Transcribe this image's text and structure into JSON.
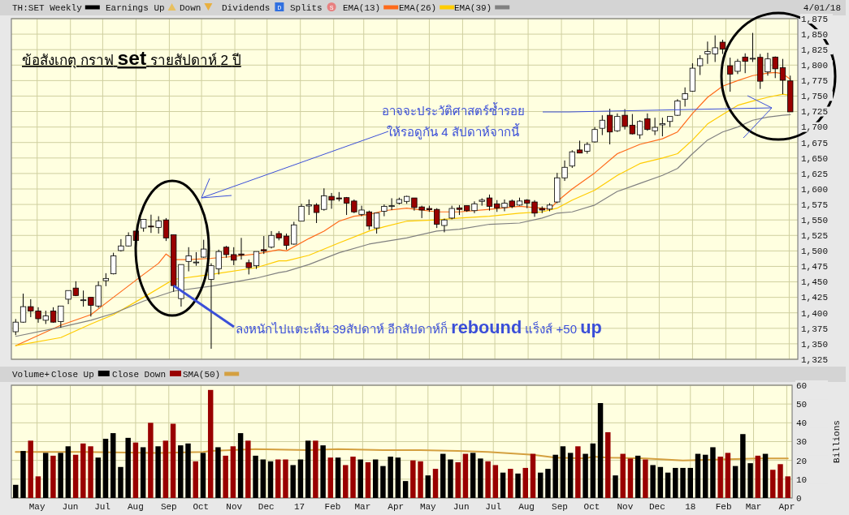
{
  "chart_data": [
    {
      "type": "candlestick",
      "title": "ข้อสังเกตุ กราฟ set รายสัปดาห์ 2 ปี",
      "legend": "top left",
      "grid": true,
      "tick_labels": "y",
      "annotations": [
        "Earnings Up",
        "Down",
        "Dividends",
        "D",
        "Splits",
        "S",
        "4/01/18",
        "อาจจะประวัติศาสตร์ซ้ำรอย",
        "ให้รอดูกัน 4 สัปดาห์จากนี้",
        {
          "text": "ลงหนักไปแตะเส้น 39สัปดาห์ อีกสัปดาห์ก็ rebound แร็งส์ +50 up",
          "x": "2016-09-05",
          "y": 1444
        }
      ],
      "x": [
        "2016-04-11",
        "2016-04-18",
        "2016-04-25",
        "2016-05-02",
        "2016-05-09",
        "2016-05-16",
        "2016-05-23",
        "2016-05-30",
        "2016-06-06",
        "2016-06-13",
        "2016-06-20",
        "2016-06-27",
        "2016-07-04",
        "2016-07-11",
        "2016-07-18",
        "2016-07-25",
        "2016-08-01",
        "2016-08-08",
        "2016-08-15",
        "2016-08-22",
        "2016-08-29",
        "2016-09-05",
        "2016-09-12",
        "2016-09-19",
        "2016-09-26",
        "2016-10-03",
        "2016-10-10",
        "2016-10-17",
        "2016-10-24",
        "2016-10-31",
        "2016-11-07",
        "2016-11-14",
        "2016-11-21",
        "2016-11-28",
        "2016-12-05",
        "2016-12-12",
        "2016-12-19",
        "2016-12-26",
        "2017-01-02",
        "2017-01-09",
        "2017-01-16",
        "2017-01-23",
        "2017-01-30",
        "2017-02-06",
        "2017-02-13",
        "2017-02-20",
        "2017-02-27",
        "2017-03-06",
        "2017-03-13",
        "2017-03-20",
        "2017-03-27",
        "2017-04-03",
        "2017-04-10",
        "2017-04-17",
        "2017-04-24",
        "2017-05-01",
        "2017-05-08",
        "2017-05-15",
        "2017-05-22",
        "2017-05-29",
        "2017-06-05",
        "2017-06-12",
        "2017-06-19",
        "2017-06-26",
        "2017-07-03",
        "2017-07-10",
        "2017-07-17",
        "2017-07-24",
        "2017-07-31",
        "2017-08-07",
        "2017-08-14",
        "2017-08-21",
        "2017-08-28",
        "2017-09-04",
        "2017-09-11",
        "2017-09-18",
        "2017-09-25",
        "2017-10-02",
        "2017-10-09",
        "2017-10-16",
        "2017-10-23",
        "2017-10-30",
        "2017-11-06",
        "2017-11-13",
        "2017-11-20",
        "2017-11-27",
        "2017-12-04",
        "2017-12-11",
        "2017-12-18",
        "2017-12-25",
        "2018-01-01",
        "2018-01-08",
        "2018-01-15",
        "2018-01-22",
        "2018-01-29",
        "2018-02-05",
        "2018-02-12",
        "2018-02-19",
        "2018-02-26",
        "2018-03-05",
        "2018-03-12",
        "2018-03-19",
        "2018-03-26",
        "2018-04-02"
      ],
      "xlim": [
        "2016-04-07",
        "2018-04-09"
      ],
      "xticks": [
        {
          "value": "2016-05-01",
          "label": "May"
        },
        {
          "value": "2016-06-01",
          "label": "Jun"
        },
        {
          "value": "2016-07-01",
          "label": "Jul"
        },
        {
          "value": "2016-08-01",
          "label": "Aug"
        },
        {
          "value": "2016-09-01",
          "label": "Sep"
        },
        {
          "value": "2016-10-01",
          "label": "Oct"
        },
        {
          "value": "2016-11-01",
          "label": "Nov"
        },
        {
          "value": "2016-12-01",
          "label": "Dec"
        },
        {
          "value": "2017-01-01",
          "label": "17"
        },
        {
          "value": "2017-02-01",
          "label": "Feb"
        },
        {
          "value": "2017-03-01",
          "label": "Mar"
        },
        {
          "value": "2017-04-01",
          "label": "Apr"
        },
        {
          "value": "2017-05-01",
          "label": "May"
        },
        {
          "value": "2017-06-01",
          "label": "Jun"
        },
        {
          "value": "2017-07-01",
          "label": "Jul"
        },
        {
          "value": "2017-08-01",
          "label": "Aug"
        },
        {
          "value": "2017-09-01",
          "label": "Sep"
        },
        {
          "value": "2017-10-01",
          "label": "Oct"
        },
        {
          "value": "2017-11-01",
          "label": "Nov"
        },
        {
          "value": "2017-12-01",
          "label": "Dec"
        },
        {
          "value": "2018-01-01",
          "label": "18"
        },
        {
          "value": "2018-02-01",
          "label": "Feb"
        },
        {
          "value": "2018-03-01",
          "label": "Mar"
        },
        {
          "value": "2018-04-01",
          "label": "Apr"
        }
      ],
      "ylim": [
        1325,
        1875
      ],
      "yticks": [
        {
          "value": 1325,
          "label": "1,325"
        },
        {
          "value": 1350,
          "label": "1,350"
        },
        {
          "value": 1375,
          "label": "1,375"
        },
        {
          "value": 1400,
          "label": "1,400"
        },
        {
          "value": 1425,
          "label": "1,425"
        },
        {
          "value": 1450,
          "label": "1,450"
        },
        {
          "value": 1475,
          "label": "1,475"
        },
        {
          "value": 1500,
          "label": "1,500"
        },
        {
          "value": 1525,
          "label": "1,525"
        },
        {
          "value": 1550,
          "label": "1,550"
        },
        {
          "value": 1575,
          "label": "1,575"
        },
        {
          "value": 1600,
          "label": "1,600"
        },
        {
          "value": 1625,
          "label": "1,625"
        },
        {
          "value": 1650,
          "label": "1,650"
        },
        {
          "value": 1675,
          "label": "1,675"
        },
        {
          "value": 1700,
          "label": "1,700"
        },
        {
          "value": 1725,
          "label": "1,725"
        },
        {
          "value": 1750,
          "label": "1,750"
        },
        {
          "value": 1775,
          "label": "1,775"
        },
        {
          "value": 1800,
          "label": "1,800"
        },
        {
          "value": 1825,
          "label": "1,825"
        },
        {
          "value": 1850,
          "label": "1,850"
        },
        {
          "value": 1875,
          "label": "1,875"
        }
      ],
      "series": [
        {
          "name": "TH:SET Weekly",
          "type": "candlestick",
          "color": "#000000",
          "colors": [
            "#ffffff",
            "#ffffff",
            "#990000",
            "#990000",
            "#ffffff",
            "#990000",
            "#ffffff",
            "#ffffff",
            "#990000",
            "#ffffff",
            "#990000",
            "#ffffff",
            "#ffffff",
            "#ffffff",
            "#ffffff",
            "#ffffff",
            "#990000",
            "#ffffff",
            "#990000",
            "#ffffff",
            "#990000",
            "#990000",
            "#ffffff",
            "#ffffff",
            "#ffffff",
            "#ffffff",
            "#ffffff",
            "#ffffff",
            "#990000",
            "#990000",
            "#990000",
            "#990000",
            "#ffffff",
            "#990000",
            "#ffffff",
            "#990000",
            "#990000",
            "#ffffff",
            "#ffffff",
            "#ffffff",
            "#990000",
            "#ffffff",
            "#990000",
            "#990000",
            "#990000",
            "#990000",
            "#ffffff",
            "#990000",
            "#ffffff",
            "#ffffff",
            "#ffffff",
            "#ffffff",
            "#ffffff",
            "#990000",
            "#990000",
            "#990000",
            "#990000",
            "#ffffff",
            "#ffffff",
            "#990000",
            "#990000",
            "#ffffff",
            "#ffffff",
            "#990000",
            "#990000",
            "#ffffff",
            "#990000",
            "#ffffff",
            "#990000",
            "#990000",
            "#990000",
            "#ffffff",
            "#ffffff",
            "#ffffff",
            "#ffffff",
            "#990000",
            "#ffffff",
            "#ffffff",
            "#ffffff",
            "#990000",
            "#ffffff",
            "#990000",
            "#990000",
            "#ffffff",
            "#990000",
            "#ffffff",
            "#ffffff",
            "#ffffff",
            "#ffffff",
            "#ffffff",
            "#ffffff",
            "#ffffff",
            "#ffffff",
            "#ffffff",
            "#990000",
            "#990000",
            "#ffffff",
            "#990000",
            "#ffffff",
            "#990000",
            "#ffffff",
            "#990000",
            "#990000",
            "#990000"
          ],
          "ohlc": [
            [
              1369.5,
              1390,
              1364,
              1385
            ],
            [
              1385,
              1431,
              1384,
              1410
            ],
            [
              1410,
              1422,
              1393,
              1403
            ],
            [
              1403,
              1409,
              1384,
              1390.5
            ],
            [
              1388,
              1403.5,
              1382,
              1395
            ],
            [
              1403,
              1409,
              1384,
              1385
            ],
            [
              1386,
              1411,
              1376,
              1411
            ],
            [
              1422,
              1436,
              1414,
              1436
            ],
            [
              1440,
              1451,
              1427,
              1428
            ],
            [
              1420,
              1436,
              1410,
              1421
            ],
            [
              1425,
              1425,
              1394,
              1412
            ],
            [
              1411,
              1451,
              1408,
              1444
            ],
            [
              1452,
              1464,
              1443,
              1455.5
            ],
            [
              1463,
              1497,
              1462,
              1492
            ],
            [
              1500.5,
              1519,
              1499,
              1508
            ],
            [
              1508,
              1530,
              1507,
              1524.5
            ],
            [
              1532,
              1532,
              1493,
              1517
            ],
            [
              1537,
              1551,
              1531,
              1551
            ],
            [
              1540,
              1558.5,
              1529,
              1539
            ],
            [
              1538,
              1556,
              1528,
              1548.5
            ],
            [
              1550,
              1553,
              1516,
              1521
            ],
            [
              1526,
              1526,
              1434,
              1444
            ],
            [
              1423,
              1478,
              1410,
              1478
            ],
            [
              1483,
              1506,
              1467,
              1492
            ],
            [
              1481.5,
              1498,
              1476,
              1482
            ],
            [
              1490,
              1518,
              1489,
              1503
            ],
            [
              1454,
              1480,
              1342,
              1476
            ],
            [
              1471,
              1502,
              1462,
              1499
            ],
            [
              1506,
              1508,
              1489,
              1494
            ],
            [
              1494,
              1506,
              1477,
              1485
            ],
            [
              1495,
              1521,
              1486,
              1493.5
            ],
            [
              1481,
              1486,
              1462,
              1473
            ],
            [
              1476,
              1499,
              1471,
              1499
            ],
            [
              1502,
              1524,
              1495,
              1500
            ],
            [
              1506,
              1532,
              1504,
              1525
            ],
            [
              1528,
              1532,
              1517,
              1521
            ],
            [
              1524,
              1528,
              1502,
              1509
            ],
            [
              1511,
              1547,
              1510,
              1542
            ],
            [
              1548,
              1576,
              1548,
              1572
            ],
            [
              1572.5,
              1583,
              1558,
              1574.5
            ],
            [
              1574,
              1577,
              1545,
              1562
            ],
            [
              1567,
              1601,
              1565,
              1589
            ],
            [
              1588,
              1593.5,
              1568,
              1582
            ],
            [
              1585.5,
              1595,
              1580,
              1584
            ],
            [
              1586,
              1587,
              1558,
              1577
            ],
            [
              1580.5,
              1583,
              1561,
              1563
            ],
            [
              1559,
              1573,
              1556,
              1566
            ],
            [
              1563,
              1565,
              1534,
              1540
            ],
            [
              1537,
              1561,
              1528,
              1561
            ],
            [
              1564,
              1575,
              1556,
              1572
            ],
            [
              1572.5,
              1585,
              1566,
              1573
            ],
            [
              1577,
              1586,
              1575,
              1583
            ],
            [
              1580,
              1589,
              1576,
              1588
            ],
            [
              1585.5,
              1585.5,
              1565,
              1570
            ],
            [
              1571,
              1573,
              1553,
              1566
            ],
            [
              1568.5,
              1573,
              1563,
              1566.5
            ],
            [
              1567,
              1569,
              1537,
              1543
            ],
            [
              1541,
              1552,
              1530,
              1550
            ],
            [
              1553,
              1573,
              1551,
              1568.5
            ],
            [
              1569.5,
              1574,
              1558,
              1567
            ],
            [
              1573,
              1573,
              1563,
              1565
            ],
            [
              1565,
              1580,
              1561,
              1576
            ],
            [
              1580,
              1585,
              1573,
              1582
            ],
            [
              1585.5,
              1591,
              1565,
              1572
            ],
            [
              1576,
              1582,
              1563,
              1569.5
            ],
            [
              1570,
              1583,
              1564,
              1577
            ],
            [
              1580.5,
              1583,
              1569,
              1572
            ],
            [
              1574,
              1586,
              1573,
              1580.5
            ],
            [
              1582,
              1583.5,
              1569,
              1577
            ],
            [
              1579,
              1582,
              1555,
              1561
            ],
            [
              1568.5,
              1572,
              1561,
              1566
            ],
            [
              1567.5,
              1577,
              1564,
              1574
            ],
            [
              1579,
              1626,
              1577,
              1618
            ],
            [
              1618,
              1646,
              1613,
              1635
            ],
            [
              1637,
              1662.5,
              1634,
              1660
            ],
            [
              1663,
              1678,
              1657.5,
              1658
            ],
            [
              1661,
              1675.5,
              1657,
              1672
            ],
            [
              1676,
              1700,
              1675,
              1696
            ],
            [
              1698,
              1719,
              1687,
              1711
            ],
            [
              1719,
              1729.5,
              1672,
              1692
            ],
            [
              1694,
              1722,
              1692,
              1717
            ],
            [
              1719,
              1729,
              1696,
              1701
            ],
            [
              1703,
              1721,
              1688,
              1689
            ],
            [
              1687.5,
              1711,
              1681,
              1709
            ],
            [
              1713.5,
              1722,
              1694,
              1696
            ],
            [
              1694,
              1715,
              1687,
              1699.5
            ],
            [
              1703.5,
              1715,
              1685,
              1705.5
            ],
            [
              1709,
              1717,
              1700,
              1717
            ],
            [
              1719,
              1745,
              1718,
              1742
            ],
            [
              1745,
              1764,
              1733,
              1754
            ],
            [
              1758,
              1803,
              1757,
              1795
            ],
            [
              1799,
              1816,
              1784,
              1810.5
            ],
            [
              1818,
              1838,
              1802,
              1822
            ],
            [
              1818,
              1848,
              1805,
              1828
            ],
            [
              1837,
              1841,
              1818,
              1826
            ],
            [
              1799,
              1812,
              1757,
              1785.5
            ],
            [
              1790,
              1810,
              1785.5,
              1806
            ],
            [
              1813,
              1819,
              1787,
              1806
            ],
            [
              1810.5,
              1852,
              1805,
              1811
            ],
            [
              1812.5,
              1818,
              1761.5,
              1774
            ],
            [
              1789,
              1820,
              1783,
              1810
            ],
            [
              1813,
              1814,
              1779,
              1794
            ],
            [
              1796,
              1810,
              1753,
              1775.5
            ],
            [
              1774.5,
              1783,
              1724.5,
              1724.5
            ]
          ]
        },
        {
          "name": "EMA(13)",
          "type": "line",
          "color": "#ff6a1a",
          "x": [
            "2016-04-11",
            "2016-05-23",
            "2016-06-20",
            "2016-07-11",
            "2016-08-08",
            "2016-08-22",
            "2016-08-29",
            "2016-09-05",
            "2016-09-19",
            "2016-10-10",
            "2016-10-31",
            "2016-11-21",
            "2016-12-12",
            "2016-12-19",
            "2017-01-09",
            "2017-01-23",
            "2017-02-06",
            "2017-02-20",
            "2017-03-06",
            "2017-03-20",
            "2017-04-10",
            "2017-05-08",
            "2017-05-29",
            "2017-06-26",
            "2017-07-24",
            "2017-08-14",
            "2017-08-21",
            "2017-08-28",
            "2017-09-11",
            "2017-10-02",
            "2017-10-23",
            "2017-11-13",
            "2017-12-04",
            "2017-12-18",
            "2018-01-01",
            "2018-01-15",
            "2018-01-29",
            "2018-02-12",
            "2018-02-26",
            "2018-03-12",
            "2018-03-19",
            "2018-03-26",
            "2018-04-02"
          ],
          "values": [
            1347,
            1380,
            1397,
            1425,
            1462,
            1480,
            1495,
            1486,
            1486,
            1488,
            1491,
            1495,
            1502,
            1500,
            1520,
            1532,
            1548,
            1556,
            1559,
            1565,
            1569,
            1563,
            1563,
            1567,
            1572,
            1569,
            1567,
            1580,
            1600,
            1626,
            1657,
            1672,
            1681,
            1692,
            1722,
            1748,
            1766,
            1775,
            1783,
            1787,
            1788,
            1786,
            1777
          ]
        },
        {
          "name": "EMA(26)",
          "type": "line",
          "color": "#ffcc00",
          "x": [
            "2016-04-11",
            "2016-05-23",
            "2016-06-20",
            "2016-07-11",
            "2016-08-08",
            "2016-09-05",
            "2016-10-10",
            "2016-11-21",
            "2016-12-12",
            "2016-12-19",
            "2017-01-09",
            "2017-02-06",
            "2017-03-06",
            "2017-03-20",
            "2017-04-10",
            "2017-05-08",
            "2017-05-29",
            "2017-06-26",
            "2017-07-24",
            "2017-08-14",
            "2017-08-28",
            "2017-09-11",
            "2017-10-02",
            "2017-10-23",
            "2017-11-13",
            "2017-12-04",
            "2017-12-18",
            "2018-01-01",
            "2018-01-15",
            "2018-01-29",
            "2018-02-12",
            "2018-02-26",
            "2018-03-12",
            "2018-03-26",
            "2018-04-02"
          ],
          "values": [
            1347,
            1360,
            1382,
            1397,
            1425,
            1454,
            1462,
            1473,
            1484,
            1484,
            1493,
            1513,
            1532,
            1539,
            1548,
            1550,
            1553,
            1556,
            1561,
            1563,
            1569,
            1582,
            1598,
            1622,
            1641,
            1650,
            1657,
            1679,
            1705,
            1720,
            1735,
            1742,
            1748,
            1753,
            1751
          ]
        },
        {
          "name": "EMA(39)",
          "type": "line",
          "color": "#808080",
          "x": [
            "2016-04-11",
            "2016-05-23",
            "2016-06-20",
            "2016-07-11",
            "2016-08-08",
            "2016-09-05",
            "2016-10-10",
            "2016-11-21",
            "2016-12-12",
            "2016-12-19",
            "2017-01-09",
            "2017-02-06",
            "2017-03-06",
            "2017-03-20",
            "2017-04-10",
            "2017-05-08",
            "2017-05-29",
            "2017-06-26",
            "2017-07-24",
            "2017-08-14",
            "2017-08-28",
            "2017-09-11",
            "2017-10-02",
            "2017-10-23",
            "2017-11-13",
            "2017-12-04",
            "2017-12-18",
            "2018-01-01",
            "2018-01-15",
            "2018-01-29",
            "2018-02-12",
            "2018-02-26",
            "2018-03-12",
            "2018-03-26",
            "2018-04-02"
          ],
          "values": [
            1362,
            1377,
            1388,
            1399,
            1419,
            1435,
            1443,
            1456,
            1465,
            1467,
            1478,
            1497,
            1511,
            1515,
            1521,
            1532,
            1535,
            1543,
            1545,
            1553,
            1561,
            1563,
            1574,
            1596,
            1609,
            1622,
            1633,
            1657,
            1679,
            1692,
            1700,
            1711,
            1716,
            1719,
            1720
          ]
        }
      ]
    },
    {
      "type": "bar",
      "legend": "top left",
      "legend_title": "Volume+",
      "ylabel": "Billions",
      "grid": true,
      "x": [
        "2016-04-11",
        "2016-04-18",
        "2016-04-25",
        "2016-05-02",
        "2016-05-09",
        "2016-05-16",
        "2016-05-23",
        "2016-05-30",
        "2016-06-06",
        "2016-06-13",
        "2016-06-20",
        "2016-06-27",
        "2016-07-04",
        "2016-07-11",
        "2016-07-18",
        "2016-07-25",
        "2016-08-01",
        "2016-08-08",
        "2016-08-15",
        "2016-08-22",
        "2016-08-29",
        "2016-09-05",
        "2016-09-12",
        "2016-09-19",
        "2016-09-26",
        "2016-10-03",
        "2016-10-10",
        "2016-10-17",
        "2016-10-24",
        "2016-10-31",
        "2016-11-07",
        "2016-11-14",
        "2016-11-21",
        "2016-11-28",
        "2016-12-05",
        "2016-12-12",
        "2016-12-19",
        "2016-12-26",
        "2017-01-02",
        "2017-01-09",
        "2017-01-16",
        "2017-01-23",
        "2017-01-30",
        "2017-02-06",
        "2017-02-13",
        "2017-02-20",
        "2017-02-27",
        "2017-03-06",
        "2017-03-13",
        "2017-03-20",
        "2017-03-27",
        "2017-04-03",
        "2017-04-10",
        "2017-04-17",
        "2017-04-24",
        "2017-05-01",
        "2017-05-08",
        "2017-05-15",
        "2017-05-22",
        "2017-05-29",
        "2017-06-05",
        "2017-06-12",
        "2017-06-19",
        "2017-06-26",
        "2017-07-03",
        "2017-07-10",
        "2017-07-17",
        "2017-07-24",
        "2017-07-31",
        "2017-08-07",
        "2017-08-14",
        "2017-08-21",
        "2017-08-28",
        "2017-09-04",
        "2017-09-11",
        "2017-09-18",
        "2017-09-25",
        "2017-10-02",
        "2017-10-09",
        "2017-10-16",
        "2017-10-23",
        "2017-10-30",
        "2017-11-06",
        "2017-11-13",
        "2017-11-20",
        "2017-11-27",
        "2017-12-04",
        "2017-12-11",
        "2017-12-18",
        "2017-12-25",
        "2018-01-01",
        "2018-01-08",
        "2018-01-15",
        "2018-01-22",
        "2018-01-29",
        "2018-02-05",
        "2018-02-12",
        "2018-02-19",
        "2018-02-26",
        "2018-03-05",
        "2018-03-12",
        "2018-03-19",
        "2018-03-26",
        "2018-04-02"
      ],
      "xlim": [
        "2016-04-07",
        "2018-04-06"
      ],
      "xticks": [
        {
          "value": "2016-05-01",
          "label": "May"
        },
        {
          "value": "2016-06-01",
          "label": "Jun"
        },
        {
          "value": "2016-07-01",
          "label": "Jul"
        },
        {
          "value": "2016-08-01",
          "label": "Aug"
        },
        {
          "value": "2016-09-01",
          "label": "Sep"
        },
        {
          "value": "2016-10-01",
          "label": "Oct"
        },
        {
          "value": "2016-11-01",
          "label": "Nov"
        },
        {
          "value": "2016-12-01",
          "label": "Dec"
        },
        {
          "value": "2017-01-01",
          "label": "17"
        },
        {
          "value": "2017-02-01",
          "label": "Feb"
        },
        {
          "value": "2017-03-01",
          "label": "Mar"
        },
        {
          "value": "2017-04-01",
          "label": "Apr"
        },
        {
          "value": "2017-05-01",
          "label": "May"
        },
        {
          "value": "2017-06-01",
          "label": "Jun"
        },
        {
          "value": "2017-07-01",
          "label": "Jul"
        },
        {
          "value": "2017-08-01",
          "label": "Aug"
        },
        {
          "value": "2017-09-01",
          "label": "Sep"
        },
        {
          "value": "2017-10-01",
          "label": "Oct"
        },
        {
          "value": "2017-11-01",
          "label": "Nov"
        },
        {
          "value": "2017-12-01",
          "label": "Dec"
        },
        {
          "value": "2018-01-01",
          "label": "18"
        },
        {
          "value": "2018-02-01",
          "label": "Feb"
        },
        {
          "value": "2018-03-01",
          "label": "Mar"
        },
        {
          "value": "2018-04-01",
          "label": "Apr"
        }
      ],
      "ylim": [
        0,
        60
      ],
      "yticks": [
        0,
        10,
        20,
        30,
        40,
        50,
        60
      ],
      "series": [
        {
          "name": "Close Up",
          "color": "#000000",
          "values": [
            7,
            25,
            null,
            null,
            24,
            null,
            24,
            27.5,
            null,
            null,
            null,
            21.5,
            31.5,
            34.5,
            16.5,
            32,
            null,
            27,
            null,
            27.5,
            null,
            null,
            28,
            29,
            null,
            24,
            null,
            27,
            null,
            null,
            34.5,
            null,
            22.5,
            20.5,
            19.5,
            null,
            null,
            17.5,
            20.5,
            30.5,
            null,
            28,
            null,
            21.5,
            null,
            null,
            20.5,
            null,
            20.5,
            17,
            22,
            21.5,
            9,
            null,
            null,
            12,
            null,
            23.5,
            20.5,
            null,
            null,
            24,
            21,
            null,
            null,
            13.5,
            null,
            13,
            null,
            null,
            13.5,
            15.5,
            23,
            27.5,
            24,
            null,
            23.5,
            29,
            50.5,
            null,
            12,
            null,
            null,
            22.5,
            null,
            17.5,
            16.5,
            13.5,
            16,
            16,
            16,
            23.5,
            23,
            27,
            null,
            null,
            17,
            34,
            18.5,
            null,
            23.5,
            null,
            null,
            null
          ]
        },
        {
          "name": "Close Down",
          "color": "#990000",
          "values": [
            null,
            null,
            30.5,
            11.5,
            null,
            22.5,
            null,
            null,
            23,
            29,
            27.5,
            null,
            null,
            null,
            null,
            null,
            29.5,
            null,
            40,
            null,
            30.5,
            39.5,
            null,
            null,
            19.5,
            null,
            57.5,
            null,
            22.5,
            27.5,
            null,
            30.5,
            null,
            null,
            null,
            20.5,
            20.5,
            null,
            null,
            null,
            30.5,
            null,
            21.5,
            null,
            17.5,
            22,
            null,
            19,
            null,
            null,
            null,
            null,
            null,
            20,
            19.5,
            null,
            15.5,
            null,
            null,
            19,
            23.5,
            null,
            null,
            19.5,
            17.5,
            null,
            15.5,
            null,
            16,
            23.5,
            null,
            null,
            null,
            null,
            null,
            27.5,
            null,
            null,
            null,
            35,
            null,
            23.5,
            21,
            null,
            20.5,
            null,
            null,
            null,
            null,
            null,
            null,
            null,
            null,
            null,
            22,
            24,
            null,
            null,
            null,
            22.5,
            null,
            15,
            18,
            11.5
          ]
        },
        {
          "name": "SMA(50)",
          "type": "line",
          "color": "#d4a040",
          "x": [
            "2016-04-11",
            "2016-06-13",
            "2016-08-22",
            "2016-10-03",
            "2016-10-10",
            "2016-11-21",
            "2017-01-09",
            "2017-02-06",
            "2017-03-20",
            "2017-04-24",
            "2017-05-29",
            "2017-06-26",
            "2017-08-07",
            "2017-08-28",
            "2017-09-25",
            "2017-10-02",
            "2017-10-16",
            "2017-11-20",
            "2017-12-25",
            "2018-01-29",
            "2018-03-05",
            "2018-04-02"
          ],
          "values": [
            24.5,
            24.5,
            24,
            24.5,
            25,
            26,
            25.5,
            26,
            25.5,
            25.5,
            25,
            24.5,
            23,
            21.5,
            21,
            22,
            21.5,
            21,
            20,
            20.5,
            21,
            21
          ]
        }
      ]
    }
  ]
}
